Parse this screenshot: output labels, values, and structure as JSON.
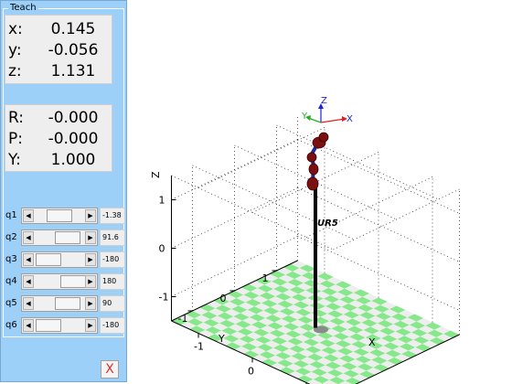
{
  "panel": {
    "title": "Teach",
    "position": [
      {
        "label": "x:",
        "value": "0.145"
      },
      {
        "label": "y:",
        "value": "-0.056"
      },
      {
        "label": "z:",
        "value": "1.131"
      }
    ],
    "orientation": [
      {
        "label": "R:",
        "value": "-0.000"
      },
      {
        "label": "P:",
        "value": "-0.000"
      },
      {
        "label": "Y:",
        "value": "1.000"
      }
    ],
    "joints": [
      {
        "label": "q1",
        "value": "-1.38",
        "slider": 0.45
      },
      {
        "label": "q2",
        "value": "91.6",
        "slider": 0.75
      },
      {
        "label": "q3",
        "value": "-180",
        "slider": 0.05
      },
      {
        "label": "q4",
        "value": "180",
        "slider": 0.95
      },
      {
        "label": "q5",
        "value": "90",
        "slider": 0.75
      },
      {
        "label": "q6",
        "value": "-180",
        "slider": 0.05
      }
    ],
    "close_label": "X",
    "close_icon": "close-icon"
  },
  "plot": {
    "zlabel": "Z",
    "xlabel": "X",
    "ylabel": "Y",
    "z_ticks": [
      "1",
      "0",
      "-1"
    ],
    "x_ticks": [
      "-1",
      "0",
      "1"
    ],
    "y_ticks": [
      "1",
      "0",
      "-1"
    ],
    "robot_label": "UR5",
    "frame_labels": {
      "x": "X",
      "y": "Y",
      "z": "Z"
    },
    "colors": {
      "floor_a": "#86e88a",
      "floor_b": "#eeeeee",
      "link": "#1f2a9a",
      "joint": "#7a1010",
      "x_axis": "#e02020",
      "y_axis": "#20b020",
      "z_axis": "#2020e0"
    }
  }
}
